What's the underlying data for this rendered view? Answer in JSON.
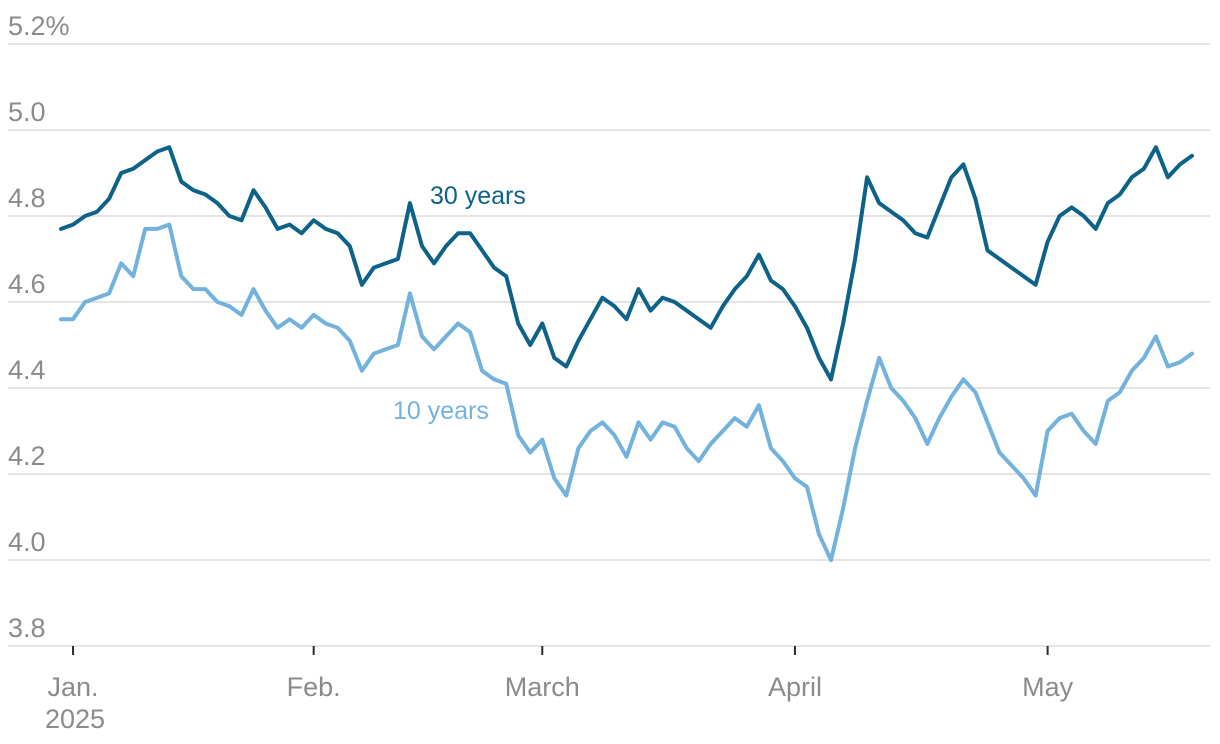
{
  "chart_data": {
    "type": "line",
    "title": "",
    "ylabel": "",
    "xlabel": "",
    "unit": "percent",
    "grid": true,
    "legend_position": "inline-annotations",
    "y_axis": {
      "range": [
        3.8,
        5.2
      ],
      "ticks": [
        5.2,
        5.0,
        4.8,
        4.6,
        4.4,
        4.2,
        4.0,
        3.8
      ],
      "tick_labels": [
        "5.2%",
        "5.0",
        "4.8",
        "4.6",
        "4.4",
        "4.2",
        "4.0",
        "3.8"
      ]
    },
    "x_axis": {
      "tick_indices": [
        1,
        21,
        40,
        61,
        82
      ],
      "tick_labels": [
        "Jan.",
        "Feb.",
        "March",
        "April",
        "May"
      ],
      "year_label": "2025"
    },
    "x": [
      "Dec. 31",
      "Jan. 2",
      "Jan. 3",
      "Jan. 6",
      "Jan. 7",
      "Jan. 8",
      "Jan. 10",
      "Jan. 13",
      "Jan. 14",
      "Jan. 15",
      "Jan. 16",
      "Jan. 17",
      "Jan. 21",
      "Jan. 22",
      "Jan. 23",
      "Jan. 24",
      "Jan. 27",
      "Jan. 28",
      "Jan. 29",
      "Jan. 30",
      "Jan. 31",
      "Feb. 3",
      "Feb. 4",
      "Feb. 5",
      "Feb. 6",
      "Feb. 7",
      "Feb. 10",
      "Feb. 11",
      "Feb. 12",
      "Feb. 13",
      "Feb. 14",
      "Feb. 18",
      "Feb. 19",
      "Feb. 20",
      "Feb. 21",
      "Feb. 24",
      "Feb. 25",
      "Feb. 26",
      "Feb. 27",
      "Feb. 28",
      "March 3",
      "March 4",
      "March 5",
      "March 6",
      "March 7",
      "March 10",
      "March 11",
      "March 12",
      "March 13",
      "March 14",
      "March 17",
      "March 18",
      "March 19",
      "March 20",
      "March 21",
      "March 24",
      "March 25",
      "March 26",
      "March 27",
      "March 28",
      "March 31",
      "April 1",
      "April 2",
      "April 3",
      "April 4",
      "April 7",
      "April 8",
      "April 9",
      "April 10",
      "April 11",
      "April 14",
      "April 15",
      "April 16",
      "April 17",
      "April 21",
      "April 22",
      "April 23",
      "April 24",
      "April 25",
      "April 28",
      "April 29",
      "April 30",
      "May 1",
      "May 2",
      "May 5",
      "May 6",
      "May 7",
      "May 8",
      "May 9",
      "May 12",
      "May 13",
      "May 14",
      "May 15",
      "May 16",
      "May 19"
    ],
    "series": [
      {
        "name": "30 years",
        "color": "#0d6287",
        "values": [
          4.77,
          4.78,
          4.8,
          4.81,
          4.84,
          4.9,
          4.91,
          4.93,
          4.95,
          4.96,
          4.88,
          4.86,
          4.85,
          4.83,
          4.8,
          4.79,
          4.86,
          4.82,
          4.77,
          4.78,
          4.76,
          4.79,
          4.77,
          4.76,
          4.73,
          4.64,
          4.68,
          4.69,
          4.7,
          4.83,
          4.73,
          4.69,
          4.73,
          4.76,
          4.76,
          4.72,
          4.68,
          4.66,
          4.55,
          4.5,
          4.55,
          4.47,
          4.45,
          4.51,
          4.56,
          4.61,
          4.59,
          4.56,
          4.63,
          4.58,
          4.61,
          4.6,
          4.58,
          4.56,
          4.54,
          4.59,
          4.63,
          4.66,
          4.71,
          4.65,
          4.63,
          4.59,
          4.54,
          4.47,
          4.42,
          4.55,
          4.7,
          4.89,
          4.83,
          4.81,
          4.79,
          4.76,
          4.75,
          4.82,
          4.89,
          4.92,
          4.84,
          4.72,
          4.7,
          4.68,
          4.66,
          4.64,
          4.74,
          4.8,
          4.82,
          4.8,
          4.77,
          4.83,
          4.85,
          4.89,
          4.91,
          4.96,
          4.89,
          4.92,
          4.94
        ]
      },
      {
        "name": "10 years",
        "color": "#72b2dc",
        "values": [
          4.56,
          4.56,
          4.6,
          4.61,
          4.62,
          4.69,
          4.66,
          4.77,
          4.77,
          4.78,
          4.66,
          4.63,
          4.63,
          4.6,
          4.59,
          4.57,
          4.63,
          4.58,
          4.54,
          4.56,
          4.54,
          4.57,
          4.55,
          4.54,
          4.51,
          4.44,
          4.48,
          4.49,
          4.5,
          4.62,
          4.52,
          4.49,
          4.52,
          4.55,
          4.53,
          4.44,
          4.42,
          4.41,
          4.29,
          4.25,
          4.28,
          4.19,
          4.15,
          4.26,
          4.3,
          4.32,
          4.29,
          4.24,
          4.32,
          4.28,
          4.32,
          4.31,
          4.26,
          4.23,
          4.27,
          4.3,
          4.33,
          4.31,
          4.36,
          4.26,
          4.23,
          4.19,
          4.17,
          4.06,
          4.0,
          4.12,
          4.26,
          4.37,
          4.47,
          4.4,
          4.37,
          4.33,
          4.27,
          4.33,
          4.38,
          4.42,
          4.39,
          4.32,
          4.25,
          4.22,
          4.19,
          4.15,
          4.3,
          4.33,
          4.34,
          4.3,
          4.27,
          4.37,
          4.39,
          4.44,
          4.47,
          4.52,
          4.45,
          4.46,
          4.48
        ]
      }
    ]
  },
  "annotations": {
    "series30": "30 years",
    "series10": "10 years"
  },
  "colors": {
    "line_30_years": "#0d6287",
    "line_10_years": "#72b2dc",
    "gridline": "#e4e4e4",
    "axis_label": "#8b8b8b",
    "tick_mark": "#2b2b2b",
    "background": "#ffffff"
  }
}
